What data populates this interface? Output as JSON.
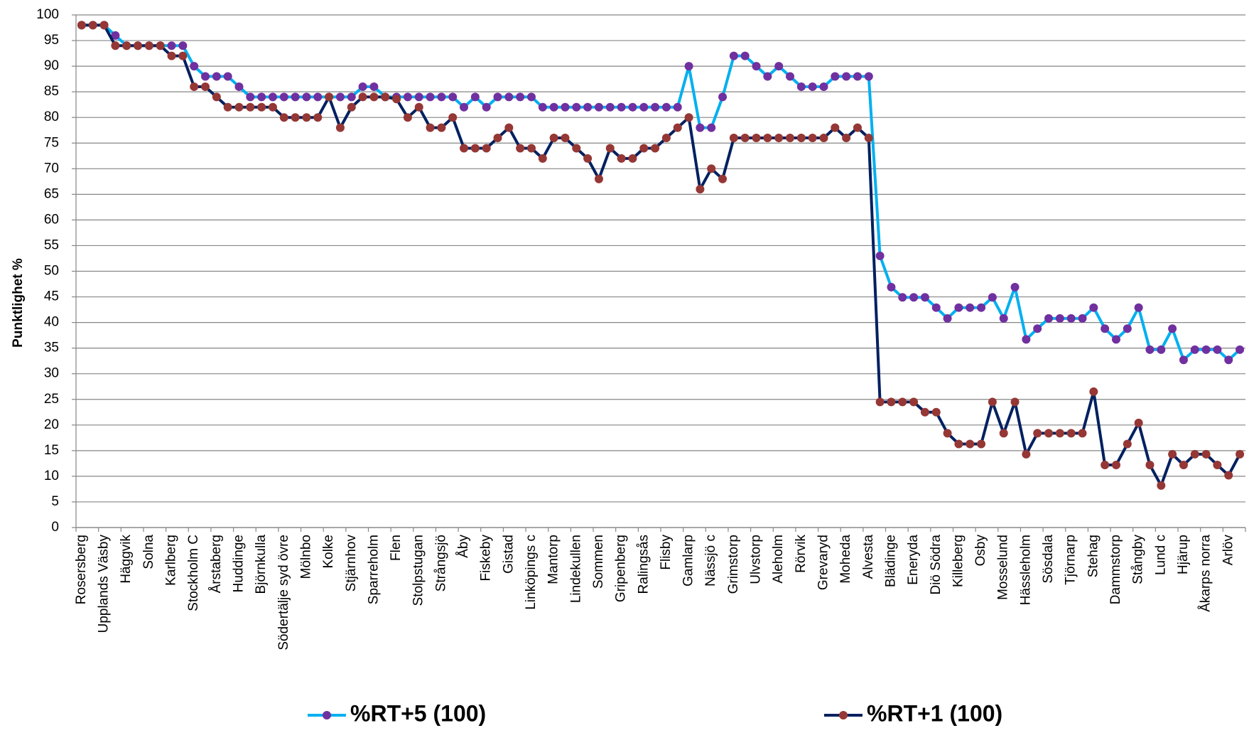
{
  "chart_data": {
    "type": "line",
    "y_label": "Punktlighet %",
    "categories": [
      "Rosersberg",
      null,
      "Upplands Väsby",
      null,
      "Häggvik",
      null,
      "Solna",
      null,
      "Karlberg",
      null,
      "Stockholm C",
      null,
      "Årstaberg",
      null,
      "Huddinge",
      null,
      "Björnkulla",
      null,
      "Södertälje syd övre",
      null,
      "Mölnbo",
      null,
      "Kolke",
      null,
      "Stjärnhov",
      null,
      "Sparreholm",
      null,
      "Flen",
      null,
      "Stolpstugan",
      null,
      "Strångsjö",
      null,
      "Åby",
      null,
      "Fiskeby",
      null,
      "Gistad",
      null,
      "Linköpings c",
      null,
      "Mantorp",
      null,
      "Lindekullen",
      null,
      "Sommen",
      null,
      "Gripenberg",
      null,
      "Ralingsås",
      null,
      "Flisby",
      null,
      "Gamlarp",
      null,
      "Nässjö c",
      null,
      "Grimstorp",
      null,
      "Ulvstorp",
      null,
      "Aleholm",
      null,
      "Rörvik",
      null,
      "Grevaryd",
      null,
      "Moheda",
      null,
      "Alvesta",
      null,
      "Blädinge",
      null,
      "Eneryda",
      null,
      "Diö Södra",
      null,
      "Killeberg",
      null,
      "Osby",
      null,
      "Mosselund",
      null,
      "Hässleholm",
      null,
      "Sösdala",
      null,
      "Tjörnarp",
      null,
      "Stehag",
      null,
      "Dammstorp",
      null,
      "Stångby",
      null,
      "Lund c",
      null,
      "Hjärup",
      null,
      "Åkarps norra",
      null,
      "Arlöv",
      null
    ],
    "series": [
      {
        "name": "%RT+5 (100)",
        "color": "#00b0f0",
        "marker_color": "#7030a0",
        "values": [
          98,
          98,
          98,
          96,
          94,
          94,
          94,
          94,
          94,
          94,
          90,
          88,
          88,
          88,
          86,
          84,
          84,
          84,
          84,
          84,
          84,
          84,
          84,
          84,
          84,
          86,
          86,
          84,
          84,
          84,
          84,
          84,
          84,
          84,
          82,
          84,
          82,
          84,
          84,
          84,
          84,
          82,
          82,
          82,
          82,
          82,
          82,
          82,
          82,
          82,
          82,
          82,
          82,
          82,
          90,
          78,
          78,
          84,
          92,
          92,
          90,
          88,
          90,
          88,
          86,
          86,
          86,
          88,
          88,
          88,
          88,
          53,
          46.9,
          44.9,
          44.9,
          44.9,
          42.9,
          40.8,
          42.9,
          42.9,
          42.9,
          44.9,
          40.8,
          46.9,
          36.7,
          38.8,
          40.8,
          40.8,
          40.8,
          40.8,
          42.9,
          38.8,
          36.7,
          38.8,
          42.9,
          34.7,
          34.7,
          38.8,
          32.7,
          34.7,
          34.7,
          34.7,
          32.7,
          34.7
        ]
      },
      {
        "name": "%RT+1 (100)",
        "color": "#002060",
        "marker_color": "#953735",
        "values": [
          98,
          98,
          98,
          94,
          94,
          94,
          94,
          94,
          92,
          92,
          86,
          86,
          84,
          82,
          82,
          82,
          82,
          82,
          80,
          80,
          80,
          80,
          84,
          78,
          82,
          84,
          84,
          84,
          83.6,
          80,
          82,
          78,
          78,
          80,
          74,
          74,
          74,
          76,
          78,
          74,
          74,
          72,
          76,
          76,
          74,
          72,
          68,
          74,
          72,
          72,
          74,
          74,
          76,
          78,
          80,
          66,
          70,
          68,
          76,
          76,
          76,
          76,
          76,
          76,
          76,
          76,
          76,
          78,
          76,
          78,
          76,
          24.5,
          24.5,
          24.5,
          24.5,
          22.5,
          22.5,
          18.4,
          16.3,
          16.3,
          16.3,
          24.5,
          18.4,
          24.5,
          14.3,
          18.4,
          18.4,
          18.4,
          18.4,
          18.4,
          26.5,
          12.2,
          12.2,
          16.3,
          20.4,
          12.2,
          8.2,
          14.3,
          12.2,
          14.3,
          14.3,
          12.2,
          10.2,
          14.3
        ]
      }
    ],
    "ylim": [
      0,
      100
    ],
    "yticks": [
      0,
      5,
      10,
      15,
      20,
      25,
      30,
      35,
      40,
      45,
      50,
      55,
      60,
      65,
      70,
      75,
      80,
      85,
      90,
      95,
      100
    ],
    "grid": true,
    "legend": "bottom"
  }
}
